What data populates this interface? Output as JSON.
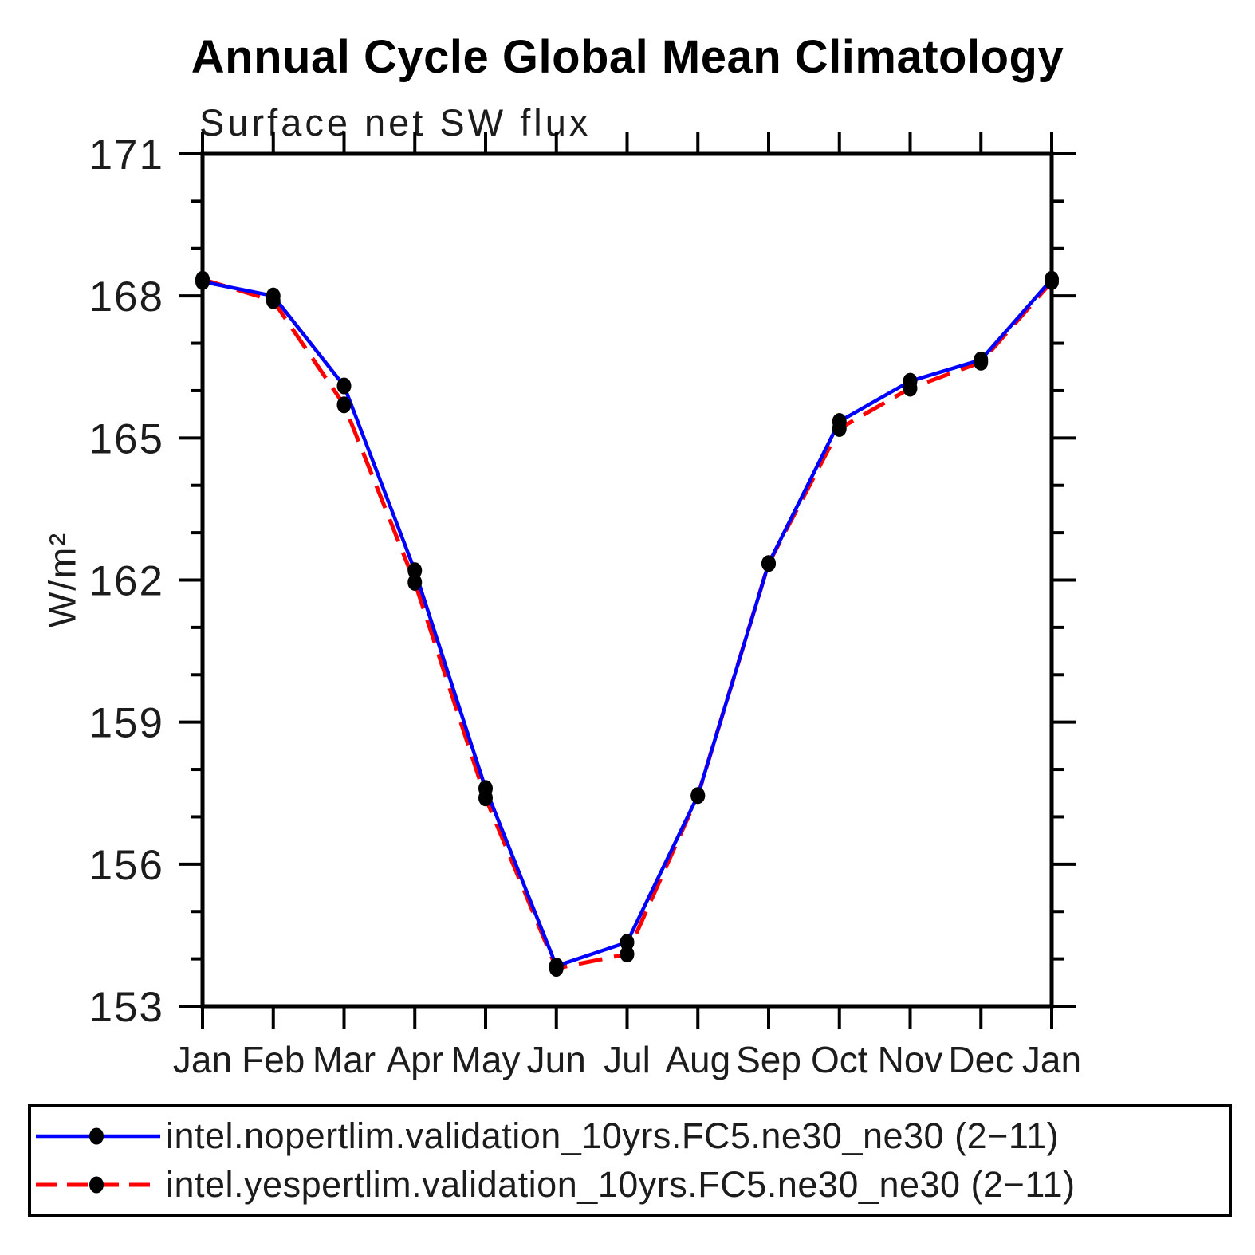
{
  "chart": {
    "title": "Annual Cycle Global Mean Climatology",
    "subtitle": "Surface net SW flux",
    "ylabel": "W/m²"
  },
  "legend": {
    "position": "bottom",
    "items": [
      {
        "label": "intel.nopertlim.validation_10yrs.FC5.ne30_ne30 (2−11)",
        "line_style": "solid",
        "color": "#0000ff",
        "marker": "filled-circle",
        "marker_color": "#000000"
      },
      {
        "label": "intel.yespertlim.validation_10yrs.FC5.ne30_ne30 (2−11)",
        "line_style": "dashed",
        "color": "#ff0000",
        "marker": "filled-circle",
        "marker_color": "#000000"
      }
    ]
  },
  "chart_data": {
    "type": "line",
    "title": "Annual Cycle Global Mean Climatology",
    "subtitle": "Surface net SW flux",
    "xlabel": "",
    "ylabel": "W/m²",
    "x_labels": [
      "Jan",
      "Feb",
      "Mar",
      "Apr",
      "May",
      "Jun",
      "Jul",
      "Aug",
      "Sep",
      "Oct",
      "Nov",
      "Dec",
      "Jan"
    ],
    "ylim": [
      153,
      171
    ],
    "yticks": [
      153,
      156,
      159,
      162,
      165,
      168,
      171
    ],
    "y_minor_step": 1,
    "grid": false,
    "legend_position": "bottom",
    "axis_color": "#000000",
    "series": [
      {
        "name": "intel.nopertlim.validation_10yrs.FC5.ne30_ne30 (2−11)",
        "color": "#0000ff",
        "style": "solid",
        "marker": "filled-circle",
        "marker_color": "#000000",
        "values": [
          168.3,
          168.0,
          166.1,
          162.2,
          157.6,
          153.85,
          154.35,
          157.45,
          162.35,
          165.35,
          166.2,
          166.65,
          168.35
        ]
      },
      {
        "name": "intel.yespertlim.validation_10yrs.FC5.ne30_ne30 (2−11)",
        "color": "#ff0000",
        "style": "dashed",
        "marker": "filled-circle",
        "marker_color": "#000000",
        "values": [
          168.35,
          167.9,
          165.7,
          161.95,
          157.4,
          153.8,
          154.1,
          157.45,
          162.35,
          165.2,
          166.05,
          166.6,
          168.3
        ]
      }
    ]
  }
}
